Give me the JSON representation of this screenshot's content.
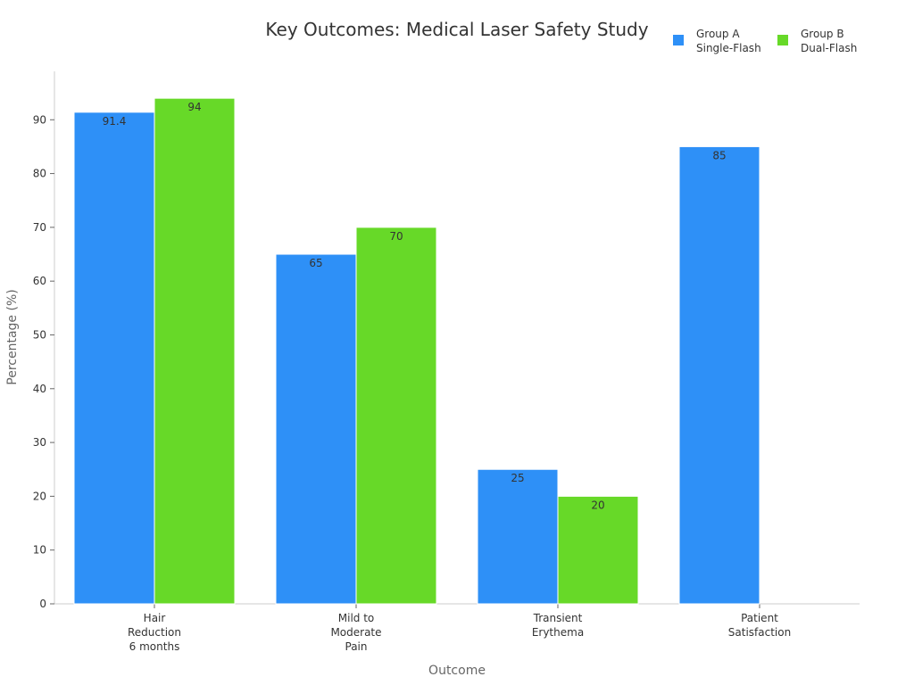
{
  "chart_data": {
    "type": "bar",
    "title": "Key Outcomes: Medical Laser Safety Study",
    "xlabel": "Outcome",
    "ylabel": "Percentage (%)",
    "ylim": [
      0,
      99
    ],
    "yticks": [
      0,
      10,
      20,
      30,
      40,
      50,
      60,
      70,
      80,
      90
    ],
    "categories": [
      [
        "Hair",
        "Reduction",
        "6 months"
      ],
      [
        "Mild to",
        "Moderate",
        "Pain"
      ],
      [
        "Transient",
        "Erythema"
      ],
      [
        "Patient",
        "Satisfaction"
      ]
    ],
    "series": [
      {
        "name": [
          "Group A",
          "Single-Flash"
        ],
        "color": "#2E90F7",
        "values": [
          91.4,
          65,
          25,
          85
        ]
      },
      {
        "name": [
          "Group B",
          "Dual-Flash"
        ],
        "color": "#67D928",
        "values": [
          94,
          70,
          20,
          null
        ]
      }
    ],
    "legend_position": "top-right",
    "grid": false
  }
}
